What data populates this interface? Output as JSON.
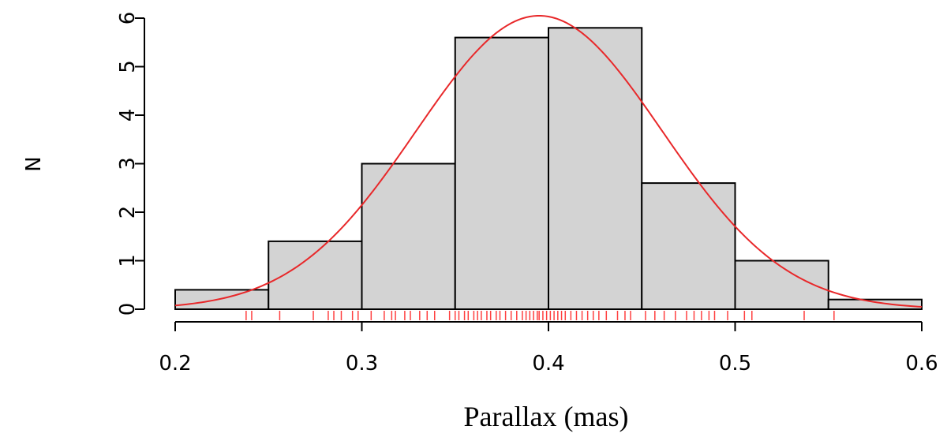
{
  "chart_data": {
    "type": "bar",
    "subtype": "histogram",
    "xlabel": "Parallax (mas)",
    "ylabel": "N",
    "xlim": [
      0.2,
      0.6
    ],
    "ylim": [
      0,
      6
    ],
    "x_ticks": [
      "0.2",
      "0.3",
      "0.4",
      "0.5",
      "0.6"
    ],
    "y_ticks": [
      "0",
      "1",
      "2",
      "3",
      "4",
      "5",
      "6"
    ],
    "bins": [
      {
        "x0": 0.2,
        "x1": 0.25,
        "value": 0.4
      },
      {
        "x0": 0.25,
        "x1": 0.3,
        "value": 1.4
      },
      {
        "x0": 0.3,
        "x1": 0.35,
        "value": 3.0
      },
      {
        "x0": 0.35,
        "x1": 0.4,
        "value": 5.6
      },
      {
        "x0": 0.4,
        "x1": 0.45,
        "value": 5.8
      },
      {
        "x0": 0.45,
        "x1": 0.5,
        "value": 2.6
      },
      {
        "x0": 0.5,
        "x1": 0.55,
        "value": 1.0
      },
      {
        "x0": 0.55,
        "x1": 0.6,
        "value": 0.2
      }
    ],
    "fit_curve": {
      "type": "normal",
      "mean": 0.395,
      "sd": 0.066,
      "peak": 6.05,
      "color": "#e8282a"
    },
    "rug": {
      "color": "#ff4040",
      "values": [
        0.238,
        0.241,
        0.256,
        0.274,
        0.282,
        0.285,
        0.289,
        0.295,
        0.298,
        0.305,
        0.312,
        0.316,
        0.318,
        0.323,
        0.326,
        0.331,
        0.335,
        0.339,
        0.347,
        0.35,
        0.352,
        0.355,
        0.357,
        0.36,
        0.362,
        0.364,
        0.367,
        0.369,
        0.372,
        0.374,
        0.377,
        0.38,
        0.383,
        0.386,
        0.388,
        0.39,
        0.392,
        0.394,
        0.395,
        0.397,
        0.399,
        0.401,
        0.403,
        0.405,
        0.407,
        0.409,
        0.412,
        0.415,
        0.418,
        0.421,
        0.424,
        0.427,
        0.431,
        0.437,
        0.441,
        0.444,
        0.452,
        0.457,
        0.462,
        0.468,
        0.474,
        0.478,
        0.482,
        0.486,
        0.489,
        0.496,
        0.505,
        0.509,
        0.537,
        0.553
      ]
    },
    "bar_color": "#d3d3d3",
    "grid": false,
    "legend": "none"
  }
}
